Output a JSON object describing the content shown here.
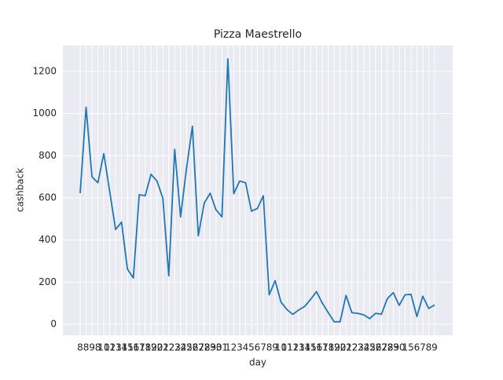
{
  "chart_data": {
    "type": "line",
    "title": "Pizza Maestrello",
    "x_label": "day",
    "y_label": "cashback",
    "categories": [
      "8",
      "8",
      "9",
      "8",
      "10",
      "12",
      "13",
      "14",
      "15",
      "16",
      "17",
      "18",
      "19",
      "20",
      "21",
      "22",
      "23",
      "24",
      "25",
      "26",
      "27",
      "28",
      "29",
      "30",
      "31",
      "1",
      "2",
      "3",
      "4",
      "5",
      "6",
      "7",
      "8",
      "9",
      "10",
      "11",
      "12",
      "13",
      "14",
      "15",
      "16",
      "17",
      "18",
      "19",
      "20",
      "21",
      "22",
      "23",
      "24",
      "25",
      "26",
      "27",
      "28",
      "29",
      "30",
      "1",
      "5",
      "6",
      "7",
      "8",
      "9"
    ],
    "values": [
      622,
      1030,
      700,
      672,
      810,
      630,
      450,
      485,
      262,
      220,
      615,
      610,
      712,
      680,
      598,
      230,
      830,
      510,
      740,
      940,
      420,
      575,
      622,
      543,
      510,
      1260,
      620,
      680,
      672,
      537,
      550,
      610,
      140,
      207,
      105,
      70,
      47,
      68,
      85,
      118,
      155,
      100,
      55,
      12,
      12,
      137,
      55,
      52,
      45,
      27,
      52,
      48,
      122,
      150,
      90,
      140,
      142,
      37,
      133,
      75,
      92
    ],
    "color": "#1f77b4",
    "ylim": [
      -52,
      1323
    ],
    "yticks": [
      0,
      200,
      400,
      600,
      800,
      1000,
      1200
    ],
    "grid": true
  }
}
